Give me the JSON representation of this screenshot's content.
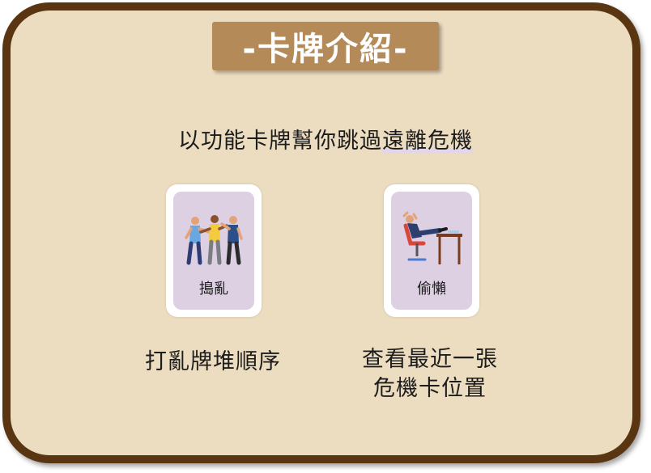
{
  "title": "-卡牌介紹-",
  "subtitle": {
    "before": "以功能卡牌幫你跳過",
    "highlight": "遠離危機"
  },
  "cards": [
    {
      "icon": "people-fighting-icon",
      "label": "搗亂",
      "description_lines": [
        "打亂牌堆順序"
      ]
    },
    {
      "icon": "person-relaxing-at-desk-icon",
      "label": "偷懶",
      "description_lines": [
        "查看最近一張",
        "危機卡位置"
      ]
    }
  ],
  "colors": {
    "frame_border": "#5a3512",
    "background": "#ecdcc0",
    "title_bg": "#b38a58",
    "card_inner": "#dcd0e2"
  }
}
